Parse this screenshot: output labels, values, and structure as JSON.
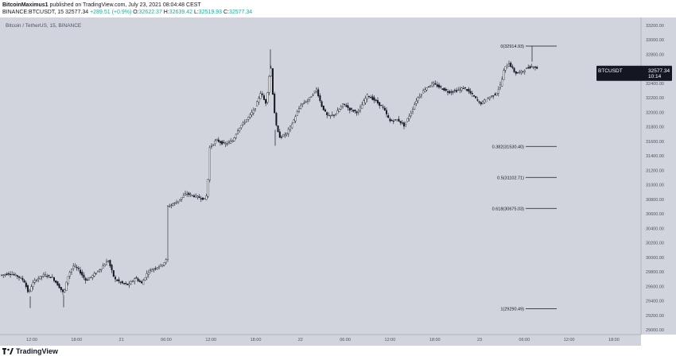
{
  "header": {
    "line1_author": "BitcoinMaximus1",
    "line1_rest": "published on TradingView.com, July 23, 2021 08:04:48 CEST",
    "line2_symbol": "BINANCE:BTCUSDT, 15",
    "line2_last": "32577.34",
    "line2_change": "+289.51 (+0.9%)",
    "o_label": "O:",
    "o_value": "32622.37",
    "h_label": "H:",
    "h_value": "32639.42",
    "l_label": "L:",
    "l_value": "32519.93",
    "c_label": "C:",
    "c_value": "32577.34"
  },
  "pane_title": "Bitcoin / TetherUS, 15, BINANCE",
  "ticker_tag": {
    "symbol": "BTCUSDT",
    "price": "32577.34",
    "countdown": "10:14"
  },
  "footer": {
    "brand": "TradingView",
    "logo_icon": "tradingview-logo-icon"
  },
  "colors": {
    "background": "#d1d4dc",
    "candle": "#131722",
    "fib_line": "#131722",
    "tag_bg": "#131722"
  },
  "chart_data": {
    "type": "candlestick",
    "title": "Bitcoin / TetherUS, 15, BINANCE",
    "x_tick_labels": [
      "12:00",
      "18:00",
      "21",
      "06:00",
      "12:00",
      "18:00",
      "22",
      "06:00",
      "12:00",
      "18:00",
      "23",
      "06:00",
      "12:00",
      "18:00"
    ],
    "y_tick_labels": [
      "33200.00",
      "33000.00",
      "32800.00",
      "32600.00",
      "32400.00",
      "32200.00",
      "32000.00",
      "31800.00",
      "31600.00",
      "31400.00",
      "31200.00",
      "31000.00",
      "30800.00",
      "30600.00",
      "30400.00",
      "30200.00",
      "30000.00",
      "29800.00",
      "29600.00",
      "29400.00",
      "29200.00",
      "29000.00"
    ],
    "ylim": [
      28940,
      33280
    ],
    "grid": false,
    "last_price": 32577.34,
    "price_path": [
      [
        0,
        29750
      ],
      [
        12,
        29780
      ],
      [
        22,
        29740
      ],
      [
        30,
        29680
      ],
      [
        36,
        29500
      ],
      [
        40,
        29620
      ],
      [
        46,
        29700
      ],
      [
        56,
        29760
      ],
      [
        66,
        29720
      ],
      [
        74,
        29600
      ],
      [
        80,
        29500
      ],
      [
        86,
        29760
      ],
      [
        92,
        29880
      ],
      [
        98,
        29840
      ],
      [
        108,
        29680
      ],
      [
        118,
        29760
      ],
      [
        128,
        29860
      ],
      [
        136,
        29960
      ],
      [
        144,
        29700
      ],
      [
        154,
        29640
      ],
      [
        162,
        29620
      ],
      [
        170,
        29720
      ],
      [
        178,
        29640
      ],
      [
        186,
        29800
      ],
      [
        196,
        29860
      ],
      [
        204,
        29900
      ],
      [
        209,
        29960
      ],
      [
        211,
        30700
      ],
      [
        222,
        30760
      ],
      [
        234,
        30880
      ],
      [
        246,
        30840
      ],
      [
        258,
        30800
      ],
      [
        261,
        30900
      ],
      [
        263,
        31500
      ],
      [
        272,
        31620
      ],
      [
        282,
        31560
      ],
      [
        292,
        31600
      ],
      [
        300,
        31780
      ],
      [
        310,
        31900
      ],
      [
        320,
        32040
      ],
      [
        328,
        32280
      ],
      [
        334,
        32120
      ],
      [
        338,
        32400
      ],
      [
        340,
        32740
      ],
      [
        344,
        32100
      ],
      [
        348,
        31760
      ],
      [
        352,
        31660
      ],
      [
        360,
        31700
      ],
      [
        368,
        31860
      ],
      [
        378,
        32100
      ],
      [
        388,
        32180
      ],
      [
        398,
        32320
      ],
      [
        404,
        32100
      ],
      [
        412,
        31940
      ],
      [
        422,
        31980
      ],
      [
        432,
        32120
      ],
      [
        440,
        32040
      ],
      [
        450,
        32000
      ],
      [
        462,
        32240
      ],
      [
        472,
        32160
      ],
      [
        482,
        32060
      ],
      [
        490,
        31880
      ],
      [
        500,
        31900
      ],
      [
        508,
        31820
      ],
      [
        516,
        31980
      ],
      [
        524,
        32180
      ],
      [
        534,
        32320
      ],
      [
        544,
        32400
      ],
      [
        554,
        32340
      ],
      [
        564,
        32280
      ],
      [
        574,
        32300
      ],
      [
        584,
        32340
      ],
      [
        594,
        32240
      ],
      [
        604,
        32120
      ],
      [
        614,
        32200
      ],
      [
        624,
        32260
      ],
      [
        630,
        32400
      ],
      [
        634,
        32600
      ],
      [
        640,
        32680
      ],
      [
        648,
        32540
      ],
      [
        656,
        32560
      ],
      [
        664,
        32620
      ],
      [
        672,
        32640
      ],
      [
        677,
        32577
      ]
    ],
    "fibonacci": {
      "levels": [
        {
          "label": "0(32914.93)",
          "price": 32914.93
        },
        {
          "label": "0.382(31530.40)",
          "price": 31530.4
        },
        {
          "label": "0.5(31102.71)",
          "price": 31102.71
        },
        {
          "label": "0.618(30675.03)",
          "price": 30675.03
        },
        {
          "label": "1(29290.49)",
          "price": 29290.49
        }
      ]
    }
  }
}
